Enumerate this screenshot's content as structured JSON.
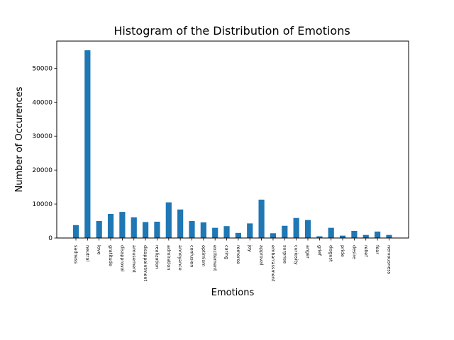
{
  "chart_data": {
    "type": "bar",
    "title": "Histogram of the Distribution of Emotions",
    "xlabel": "Emotions",
    "ylabel": "Number of Occurences",
    "ylim": [
      0,
      58000
    ],
    "yticks": [
      0,
      10000,
      20000,
      30000,
      40000,
      50000
    ],
    "grid": false,
    "bar_color": "#1f77b4",
    "categories": [
      "sadness",
      "neutral",
      "love",
      "gratitude",
      "disapproval",
      "amusement",
      "disappointment",
      "realization",
      "admiration",
      "annoyance",
      "confusion",
      "optimism",
      "excitement",
      "caring",
      "remorse",
      "joy",
      "approval",
      "embarrassment",
      "surprise",
      "curiosity",
      "anger",
      "grief",
      "disgust",
      "pride",
      "desire",
      "relief",
      "fear",
      "nervousness"
    ],
    "values": [
      3800,
      55300,
      5000,
      7100,
      7700,
      6100,
      4700,
      4800,
      10500,
      8400,
      5000,
      4600,
      3000,
      3500,
      1500,
      4300,
      11300,
      1400,
      3600,
      5900,
      5300,
      500,
      3000,
      700,
      2100,
      900,
      1900,
      900
    ]
  }
}
